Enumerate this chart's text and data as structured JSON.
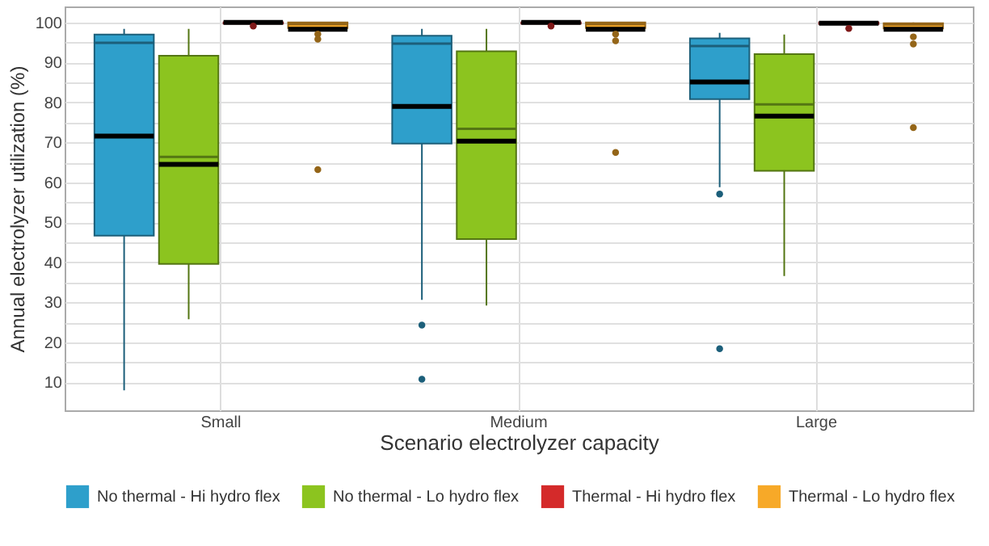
{
  "chart_data": {
    "type": "box",
    "xlabel": "Scenario electrolyzer capacity",
    "ylabel": "Annual electrolyzer utilization (%)",
    "categories": [
      "Small",
      "Medium",
      "Large"
    ],
    "ylim": [
      3,
      104
    ],
    "yticks": [
      10,
      {
        "value": 15,
        "label": null
      },
      20,
      {
        "value": 25,
        "label": null
      },
      30,
      {
        "value": 35,
        "label": null
      },
      40,
      {
        "value": 45,
        "label": null
      },
      50,
      {
        "value": 55,
        "label": null
      },
      60,
      {
        "value": 65,
        "label": null
      },
      70,
      {
        "value": 75,
        "label": null
      },
      80,
      {
        "value": 85,
        "label": null
      },
      90,
      {
        "value": 95,
        "label": null
      },
      100
    ],
    "grid": true,
    "legend": "bottom",
    "series": [
      {
        "name": "No thermal - Hi hydro flex",
        "color": "#2e9fcb",
        "boxes": [
          {
            "low": 8,
            "q1": 46.7,
            "median": 94.9,
            "q3": 97,
            "high": 98.4,
            "mean": 71.6
          },
          {
            "low": 30.6,
            "q1": 69.7,
            "median": 94.7,
            "q3": 96.7,
            "high": 98.4,
            "mean": 79,
            "outliers": [
              24.3,
              10.8
            ]
          },
          {
            "low": 58.8,
            "q1": 80.8,
            "median": 94.1,
            "q3": 96,
            "high": 97.4,
            "mean": 85.1,
            "outliers": [
              57.1,
              18.4
            ]
          }
        ]
      },
      {
        "name": "No thermal - Lo hydro flex",
        "color": "#8cc41f",
        "boxes": [
          {
            "low": 25.8,
            "q1": 39.6,
            "median": 66.4,
            "q3": 91.7,
            "high": 98.4,
            "mean": 64.5
          },
          {
            "low": 29.2,
            "q1": 45.8,
            "median": 73.4,
            "q3": 92.8,
            "high": 98.4,
            "mean": 70.3
          },
          {
            "low": 36.6,
            "q1": 62.9,
            "median": 79.5,
            "q3": 92.1,
            "high": 97,
            "mean": 76.6
          }
        ]
      },
      {
        "name": "Thermal - Hi hydro flex",
        "color": "#d42a2a",
        "boxes": [
          {
            "low": 99.4,
            "q1": 99.7,
            "median": 100,
            "q3": 100,
            "high": 100,
            "mean": 100,
            "outliers": [
              99.1
            ]
          },
          {
            "low": 99.4,
            "q1": 99.7,
            "median": 100,
            "q3": 100,
            "high": 100,
            "mean": 100,
            "outliers": [
              99.1
            ]
          },
          {
            "low": 99.3,
            "q1": 99.6,
            "median": 100,
            "q3": 100,
            "high": 100,
            "mean": 99.8,
            "outliers": [
              98.5
            ]
          }
        ]
      },
      {
        "name": "Thermal - Lo hydro flex",
        "color": "#f7a928",
        "boxes": [
          {
            "low": 98,
            "q1": 98.6,
            "median": 99.6,
            "q3": 100,
            "high": 100,
            "mean": 98.3,
            "outliers": [
              97.1,
              95.8,
              63.2
            ]
          },
          {
            "low": 98,
            "q1": 98.6,
            "median": 99.6,
            "q3": 100,
            "high": 100,
            "mean": 98.3,
            "outliers": [
              97.1,
              95.4,
              67.5
            ]
          },
          {
            "low": 98,
            "q1": 98.5,
            "median": 99.5,
            "q3": 99.8,
            "high": 100,
            "mean": 98.3,
            "outliers": [
              96.4,
              94.6,
              73.7
            ]
          }
        ]
      }
    ]
  }
}
